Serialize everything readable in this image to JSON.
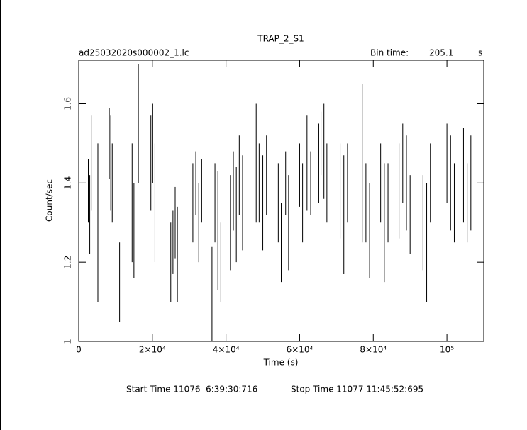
{
  "chart_data": {
    "type": "errorbar",
    "title": "TRAP_2_S1",
    "subtitle": "ad25032020s000002_1.lc",
    "bin_time_label": "Bin time:",
    "bin_time": 205.1,
    "bin_time_unit": "s",
    "xlabel": "Time (s)",
    "ylabel": "Count/sec",
    "start_time": "Start Time 11076  6:39:30:716",
    "stop_time": "Stop Time 11077 11:45:52:695",
    "color": "#000000",
    "xlim": [
      0,
      110000
    ],
    "ylim": [
      1,
      1.71
    ],
    "xticks": [
      0,
      {
        "value": 20000,
        "label": "2×10⁴"
      },
      {
        "value": 40000,
        "label": "4×10⁴"
      },
      {
        "value": 60000,
        "label": "6×10⁴"
      },
      {
        "value": 80000,
        "label": "8×10⁴"
      },
      {
        "value": 100000,
        "label": "10⁵"
      }
    ],
    "yticks": [
      1,
      1.2,
      1.4,
      1.6
    ],
    "x": [
      2600,
      3000,
      3400,
      5200,
      8300,
      8700,
      9100,
      11100,
      14500,
      15000,
      16200,
      19600,
      20100,
      20700,
      25000,
      25600,
      26200,
      26800,
      31000,
      31800,
      32600,
      33400,
      36200,
      37000,
      37800,
      38600,
      41200,
      42000,
      42800,
      43600,
      44500,
      48200,
      49000,
      50000,
      51000,
      54200,
      55000,
      56200,
      57000,
      60000,
      60800,
      62000,
      63000,
      65200,
      65800,
      66600,
      67400,
      71000,
      72000,
      73000,
      77000,
      78000,
      79000,
      82000,
      83000,
      84000,
      87000,
      88000,
      89000,
      90000,
      93500,
      94500,
      95500,
      100000,
      101000,
      102000,
      104500,
      105500,
      106500
    ],
    "values": [
      1.38,
      1.32,
      1.45,
      1.3,
      1.5,
      1.45,
      1.4,
      1.15,
      1.35,
      1.28,
      1.55,
      1.45,
      1.5,
      1.35,
      1.2,
      1.25,
      1.3,
      1.22,
      1.35,
      1.4,
      1.3,
      1.38,
      1.12,
      1.35,
      1.28,
      1.2,
      1.3,
      1.38,
      1.32,
      1.42,
      1.35,
      1.45,
      1.4,
      1.35,
      1.42,
      1.35,
      1.25,
      1.4,
      1.3,
      1.42,
      1.35,
      1.45,
      1.4,
      1.45,
      1.5,
      1.48,
      1.4,
      1.38,
      1.32,
      1.4,
      1.45,
      1.35,
      1.28,
      1.4,
      1.3,
      1.35,
      1.38,
      1.45,
      1.4,
      1.32,
      1.3,
      1.25,
      1.4,
      1.45,
      1.4,
      1.35,
      1.42,
      1.35,
      1.4
    ],
    "errors": [
      0.08,
      0.1,
      0.12,
      0.2,
      0.09,
      0.12,
      0.1,
      0.1,
      0.15,
      0.12,
      0.15,
      0.12,
      0.1,
      0.15,
      0.1,
      0.08,
      0.09,
      0.12,
      0.1,
      0.08,
      0.1,
      0.08,
      0.12,
      0.1,
      0.15,
      0.1,
      0.12,
      0.1,
      0.12,
      0.1,
      0.12,
      0.15,
      0.1,
      0.12,
      0.1,
      0.1,
      0.1,
      0.08,
      0.12,
      0.08,
      0.1,
      0.12,
      0.08,
      0.1,
      0.08,
      0.12,
      0.1,
      0.12,
      0.15,
      0.1,
      0.2,
      0.1,
      0.12,
      0.1,
      0.15,
      0.1,
      0.12,
      0.1,
      0.12,
      0.1,
      0.12,
      0.15,
      0.1,
      0.1,
      0.12,
      0.1,
      0.12,
      0.1,
      0.12
    ]
  }
}
